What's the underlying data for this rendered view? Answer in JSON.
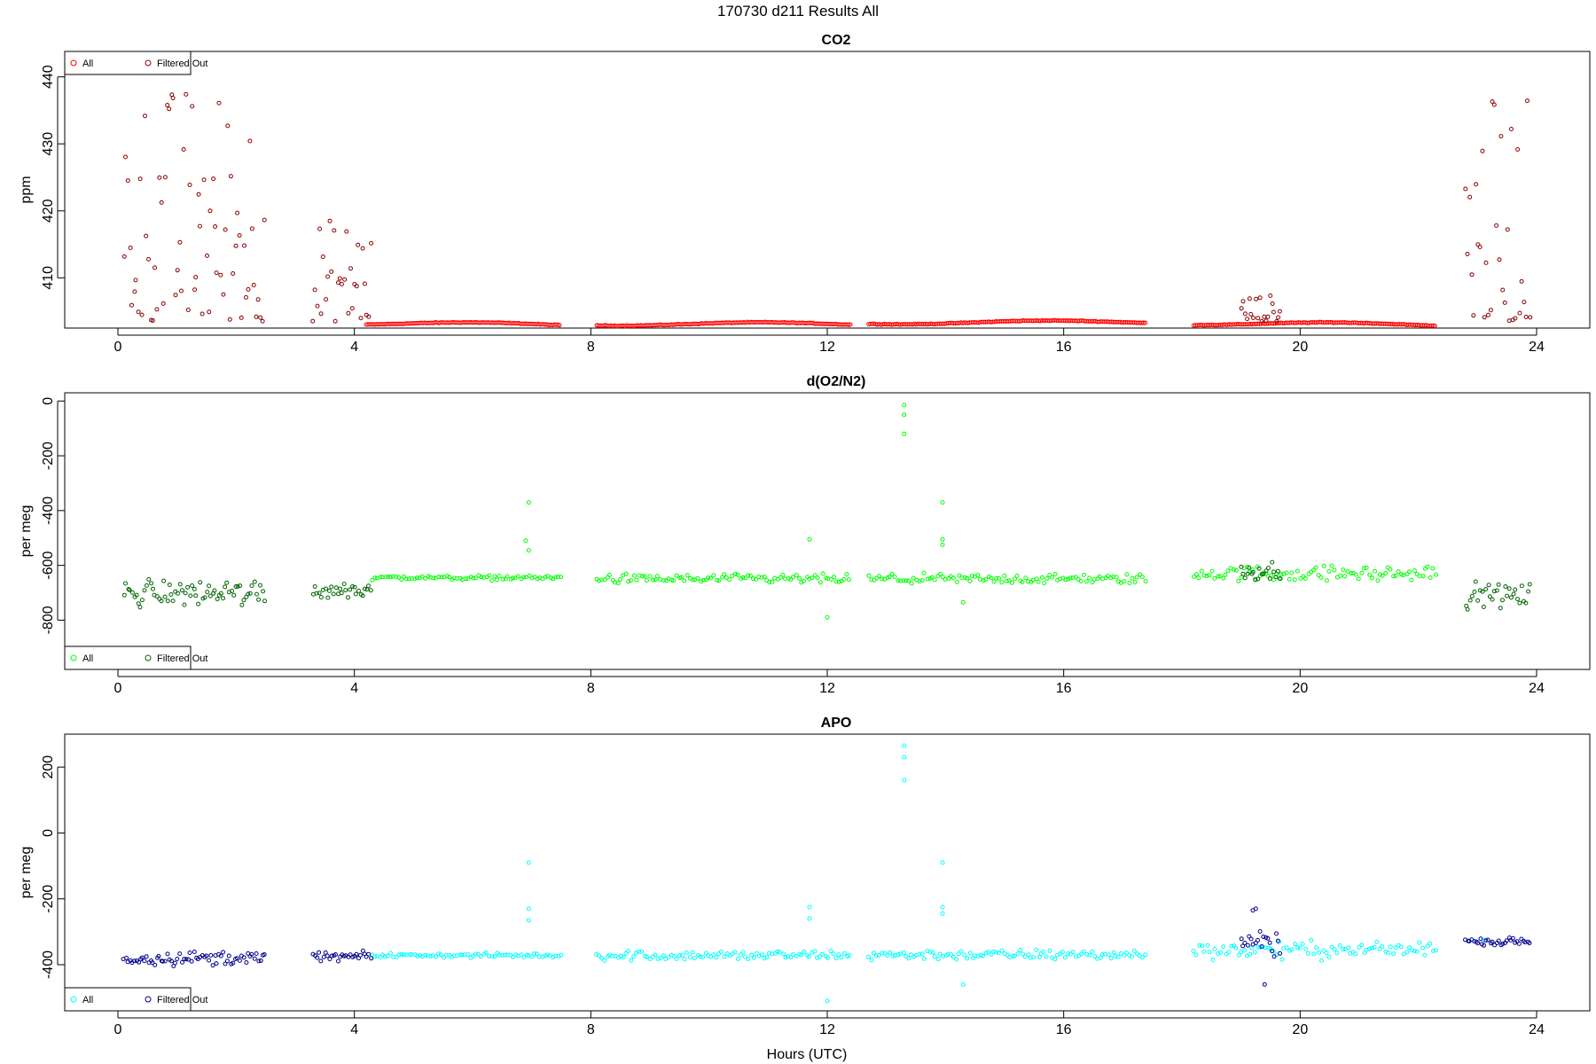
{
  "title": "170730   d211   Results All",
  "xlabel": "Hours (UTC)",
  "chart_data": [
    {
      "type": "scatter",
      "title": "CO2",
      "ylabel": "ppm",
      "xlim": [
        -0.9,
        24.9
      ],
      "ylim": [
        402.5,
        443.8
      ],
      "xticks": [
        0,
        4,
        8,
        12,
        16,
        20,
        24
      ],
      "yticks": [
        410,
        420,
        430,
        440
      ],
      "legend": "top-left",
      "series": [
        {
          "name": "All",
          "color": "#ff0000",
          "gaps": [
            [
              7.5,
              8.1
            ],
            [
              12.4,
              12.7
            ],
            [
              17.4,
              18.2
            ],
            [
              22.3,
              22.8
            ]
          ],
          "segments": [
            {
              "x": [
                4.2,
                7.5
              ],
              "y": [
                403.2,
                403.0
              ]
            },
            {
              "x": [
                8.1,
                12.4
              ],
              "y": [
                403.1,
                403.1
              ]
            },
            {
              "x": [
                12.7,
                17.4
              ],
              "y": [
                403.3,
                403.4
              ]
            },
            {
              "x": [
                18.2,
                22.3
              ],
              "y": [
                403.2,
                403.0
              ]
            }
          ]
        },
        {
          "name": "Filtered Out",
          "color": "#8b0000",
          "clusters": [
            {
              "x": [
                0.1,
                2.5
              ],
              "y_range": [
                403.5,
                439
              ]
            },
            {
              "x": [
                3.3,
                4.3
              ],
              "y_range": [
                403.5,
                419
              ]
            },
            {
              "x": [
                19.0,
                19.7
              ],
              "y_range": [
                403.5,
                407.5
              ]
            },
            {
              "x": [
                22.8,
                23.9
              ],
              "y_range": [
                403.5,
                437
              ]
            }
          ]
        }
      ]
    },
    {
      "type": "scatter",
      "title": "d(O2/N2)",
      "ylabel": "per meg",
      "xlim": [
        -0.9,
        24.9
      ],
      "ylim": [
        -980,
        30
      ],
      "xticks": [
        0,
        4,
        8,
        12,
        16,
        20,
        24
      ],
      "yticks": [
        0,
        -200,
        -400,
        -600,
        -800
      ],
      "legend": "bottom-left",
      "series": [
        {
          "name": "All",
          "color": "#00ff00",
          "clusters": [
            {
              "x": [
                4.3,
                7.5
              ],
              "center": -645,
              "spread": 12
            },
            {
              "x": [
                8.1,
                12.4
              ],
              "center": -650,
              "spread": 25
            },
            {
              "x": [
                12.7,
                17.4
              ],
              "center": -650,
              "spread": 25
            },
            {
              "x": [
                18.2,
                22.3
              ],
              "center": -630,
              "spread": 40
            }
          ],
          "outliers": [
            [
              6.95,
              -370
            ],
            [
              6.9,
              -510
            ],
            [
              6.95,
              -545
            ],
            [
              11.7,
              -505
            ],
            [
              12.0,
              -790
            ],
            [
              13.3,
              -15
            ],
            [
              13.3,
              -50
            ],
            [
              13.3,
              -120
            ],
            [
              13.95,
              -370
            ],
            [
              13.95,
              -505
            ],
            [
              13.95,
              -525
            ],
            [
              14.3,
              -735
            ]
          ]
        },
        {
          "name": "Filtered Out",
          "color": "#006400",
          "clusters": [
            {
              "x": [
                0.1,
                2.5
              ],
              "center": -700,
              "spread": 70
            },
            {
              "x": [
                3.3,
                4.3
              ],
              "center": -690,
              "spread": 45
            },
            {
              "x": [
                19.0,
                19.7
              ],
              "center": -620,
              "spread": 45
            },
            {
              "x": [
                22.8,
                23.9
              ],
              "center": -710,
              "spread": 60
            }
          ]
        }
      ]
    },
    {
      "type": "scatter",
      "title": "APO",
      "ylabel": "per meg",
      "xlim": [
        -0.9,
        24.9
      ],
      "ylim": [
        -540,
        300
      ],
      "xticks": [
        0,
        4,
        8,
        12,
        16,
        20,
        24
      ],
      "yticks": [
        200,
        0,
        -200,
        -400
      ],
      "legend": "bottom-left",
      "series": [
        {
          "name": "All",
          "color": "#00ffff",
          "clusters": [
            {
              "x": [
                4.3,
                7.5
              ],
              "center": -372,
              "spread": 10
            },
            {
              "x": [
                8.1,
                12.4
              ],
              "center": -372,
              "spread": 22
            },
            {
              "x": [
                12.7,
                17.4
              ],
              "center": -370,
              "spread": 22
            },
            {
              "x": [
                18.2,
                22.3
              ],
              "center": -355,
              "spread": 35
            }
          ],
          "outliers": [
            [
              6.95,
              -90
            ],
            [
              6.95,
              -230
            ],
            [
              6.95,
              -265
            ],
            [
              11.7,
              -225
            ],
            [
              11.7,
              -260
            ],
            [
              12.0,
              -510
            ],
            [
              13.3,
              265
            ],
            [
              13.3,
              230
            ],
            [
              13.3,
              160
            ],
            [
              13.95,
              -90
            ],
            [
              13.95,
              -225
            ],
            [
              13.95,
              -245
            ],
            [
              14.3,
              -460
            ],
            [
              23.1,
              -325
            ]
          ]
        },
        {
          "name": "Filtered Out",
          "color": "#00008b",
          "clusters": [
            {
              "x": [
                0.1,
                2.5
              ],
              "center": -380,
              "spread": 30
            },
            {
              "x": [
                3.3,
                4.3
              ],
              "center": -375,
              "spread": 18
            },
            {
              "x": [
                19.0,
                19.7
              ],
              "center": -330,
              "spread": 55
            },
            {
              "x": [
                22.8,
                23.9
              ],
              "center": -330,
              "spread": 15
            }
          ],
          "outliers": [
            [
              19.2,
              -235
            ],
            [
              19.25,
              -230
            ],
            [
              19.4,
              -460
            ]
          ]
        }
      ]
    }
  ]
}
